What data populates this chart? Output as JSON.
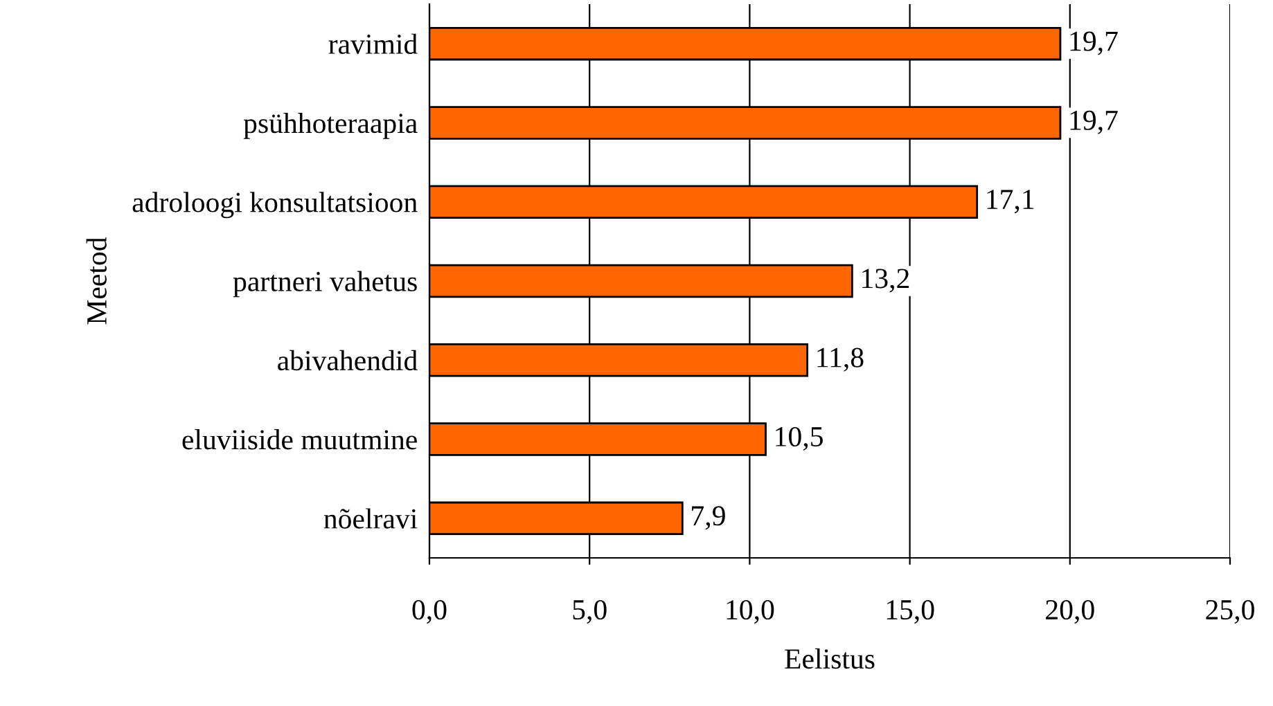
{
  "chart_data": {
    "type": "bar",
    "orientation": "horizontal",
    "categories": [
      "ravimid",
      "psühhoteraapia",
      "adroloogi konsultatsioon",
      "partneri vahetus",
      "abivahendid",
      "eluviiside muutmine",
      "nõelravi"
    ],
    "values": [
      19.7,
      19.7,
      17.1,
      13.2,
      11.8,
      10.5,
      7.9
    ],
    "value_labels": [
      "19,7",
      "19,7",
      "17,1",
      "13,2",
      "11,8",
      "10,5",
      "7,9"
    ],
    "color": "#ff6600",
    "xlim": [
      0,
      25
    ],
    "xticks": [
      {
        "value": 0,
        "label": "0,0"
      },
      {
        "value": 5,
        "label": "5,0"
      },
      {
        "value": 10,
        "label": "10,0"
      },
      {
        "value": 15,
        "label": "15,0"
      },
      {
        "value": 20,
        "label": "20,0"
      },
      {
        "value": 25,
        "label": "25,0"
      }
    ],
    "xlabel": "Eelistus",
    "ylabel": "Meetod",
    "grid": "x"
  }
}
